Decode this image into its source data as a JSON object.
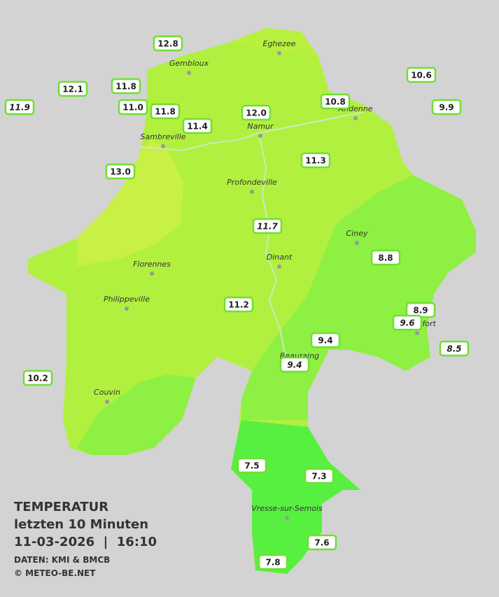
{
  "header": {
    "title": "TEMPERATUR",
    "subtitle": "letzten 10 Minuten",
    "datetime": "11-03-2026  |  16:10",
    "source": "DATEN: KMI & BMCB",
    "copyright": "© METEO-BE.NET"
  },
  "cities": [
    "Eghezee",
    "Gembloux",
    "Andenne",
    "Namur",
    "Sambreville",
    "Profondeville",
    "Ciney",
    "Dinant",
    "Florennes",
    "Philippeville",
    "Rochefort",
    "Beauraing",
    "Couvin",
    "Vresse-sur-Semois"
  ],
  "stations": [
    "12.8",
    "12.1",
    "11.8",
    "11.9",
    "11.0",
    "11.8",
    "11.4",
    "12.0",
    "10.8",
    "10.6",
    "9.9",
    "13.0",
    "11.3",
    "11.7",
    "8.8",
    "11.2",
    "8.9",
    "9.6",
    "9.4",
    "9.4",
    "8.5",
    "10.2",
    "7.5",
    "7.3",
    "7.6",
    "7.8"
  ]
}
